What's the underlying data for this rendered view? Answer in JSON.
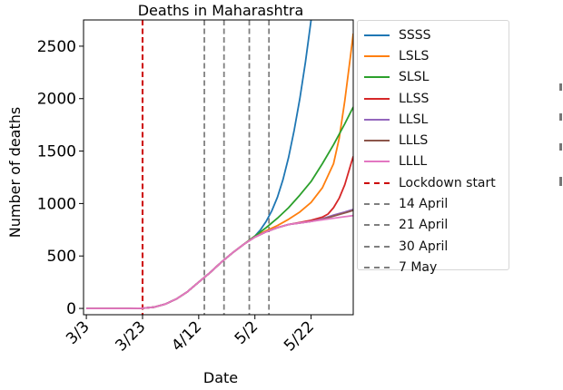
{
  "chart_data": {
    "type": "line",
    "title": "Deaths in Maharashtra",
    "xlabel": "Date",
    "ylabel": "Number of deaths",
    "x_tick_labels": [
      "3/3",
      "3/23",
      "4/12",
      "5/2",
      "5/22"
    ],
    "x_tick_days": [
      0,
      20,
      40,
      60,
      80
    ],
    "y_ticks": [
      0,
      500,
      1000,
      1500,
      2000,
      2500
    ],
    "xlim": [
      -1,
      95
    ],
    "ylim": [
      -60,
      2750
    ],
    "grid": false,
    "legend_position": "outside-right",
    "x_unit": "days since 3/3",
    "series": [
      {
        "name": "SSSS",
        "color": "#1f77b4",
        "x": [
          0,
          15,
          20,
          24,
          28,
          32,
          36,
          40,
          44,
          48,
          52,
          56,
          60,
          62,
          64,
          66,
          68,
          70,
          72,
          74,
          76,
          78,
          79,
          80
        ],
        "y": [
          0,
          0,
          2,
          12,
          40,
          90,
          160,
          250,
          340,
          440,
          530,
          610,
          690,
          750,
          830,
          930,
          1060,
          1230,
          1440,
          1700,
          2000,
          2350,
          2550,
          2750
        ]
      },
      {
        "name": "LSLS",
        "color": "#ff7f0e",
        "x": [
          0,
          15,
          20,
          24,
          28,
          32,
          36,
          40,
          44,
          48,
          52,
          56,
          60,
          64,
          68,
          72,
          76,
          80,
          84,
          88,
          90,
          92,
          94,
          95
        ],
        "y": [
          0,
          0,
          2,
          12,
          40,
          90,
          160,
          250,
          340,
          440,
          530,
          610,
          690,
          740,
          790,
          850,
          920,
          1010,
          1150,
          1380,
          1620,
          1980,
          2400,
          2620
        ]
      },
      {
        "name": "SLSL",
        "color": "#2ca02c",
        "x": [
          0,
          15,
          20,
          24,
          28,
          32,
          36,
          40,
          44,
          48,
          52,
          56,
          60,
          64,
          68,
          72,
          76,
          80,
          84,
          88,
          92,
          95
        ],
        "y": [
          0,
          0,
          2,
          12,
          40,
          90,
          160,
          250,
          340,
          440,
          530,
          610,
          690,
          770,
          860,
          960,
          1080,
          1210,
          1380,
          1560,
          1760,
          1920
        ]
      },
      {
        "name": "LLSS",
        "color": "#d62728",
        "x": [
          0,
          15,
          20,
          24,
          28,
          32,
          36,
          40,
          44,
          48,
          52,
          56,
          60,
          64,
          68,
          72,
          76,
          80,
          84,
          86,
          88,
          90,
          92,
          94,
          95
        ],
        "y": [
          0,
          0,
          2,
          12,
          40,
          90,
          160,
          250,
          340,
          440,
          530,
          610,
          680,
          730,
          770,
          800,
          820,
          840,
          870,
          900,
          960,
          1050,
          1180,
          1360,
          1450
        ]
      },
      {
        "name": "LLSL",
        "color": "#9467bd",
        "x": [
          0,
          15,
          20,
          24,
          28,
          32,
          36,
          40,
          44,
          48,
          52,
          56,
          60,
          64,
          68,
          72,
          76,
          80,
          84,
          88,
          92,
          95
        ],
        "y": [
          0,
          0,
          2,
          12,
          40,
          90,
          160,
          250,
          340,
          440,
          530,
          610,
          680,
          730,
          770,
          800,
          815,
          830,
          855,
          890,
          920,
          945
        ]
      },
      {
        "name": "LLLS",
        "color": "#8c564b",
        "x": [
          0,
          15,
          20,
          24,
          28,
          32,
          36,
          40,
          44,
          48,
          52,
          56,
          60,
          64,
          68,
          72,
          76,
          80,
          84,
          88,
          92,
          95
        ],
        "y": [
          0,
          0,
          2,
          12,
          40,
          90,
          160,
          250,
          340,
          440,
          530,
          610,
          680,
          730,
          770,
          800,
          815,
          830,
          850,
          880,
          910,
          935
        ]
      },
      {
        "name": "LLLL",
        "color": "#e377c2",
        "x": [
          0,
          15,
          20,
          24,
          28,
          32,
          36,
          40,
          44,
          48,
          52,
          56,
          60,
          64,
          68,
          72,
          76,
          80,
          84,
          88,
          92,
          95
        ],
        "y": [
          0,
          0,
          2,
          12,
          40,
          90,
          160,
          250,
          340,
          440,
          530,
          610,
          680,
          730,
          770,
          800,
          815,
          830,
          845,
          860,
          875,
          885
        ]
      }
    ],
    "vertical_lines": [
      {
        "name": "Lockdown start",
        "x": 20,
        "color": "#cc0000"
      },
      {
        "name": "14 April",
        "x": 42,
        "color": "#7f7f7f"
      },
      {
        "name": "21 April",
        "x": 49,
        "color": "#7f7f7f"
      },
      {
        "name": "30 April",
        "x": 58,
        "color": "#7f7f7f"
      },
      {
        "name": "7 May",
        "x": 65,
        "color": "#7f7f7f"
      }
    ]
  }
}
